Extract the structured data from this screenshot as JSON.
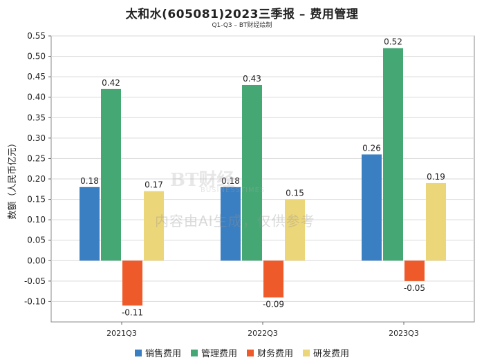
{
  "title": "太和水(605081)2023三季报 – 费用管理",
  "subtitle": "Q1-Q3 – BT财经绘制",
  "watermark": "内容由AI生成，仅供参考",
  "watermark_logo": "BT财经",
  "watermark_logo_sub": "BUSINESSTIMES",
  "chart_data": {
    "type": "bar",
    "title": "太和水(605081)2023三季报 – 费用管理",
    "subtitle": "Q1-Q3 – BT财经绘制",
    "xlabel": "",
    "ylabel": "数额（人民币亿元）",
    "categories": [
      "2021Q3",
      "2022Q3",
      "2023Q3"
    ],
    "ylim": [
      -0.15,
      0.55
    ],
    "yticks": [
      -0.1,
      -0.05,
      0.0,
      0.05,
      0.1,
      0.15,
      0.2,
      0.25,
      0.3,
      0.35,
      0.4,
      0.45,
      0.5,
      0.55
    ],
    "grid": true,
    "legend_position": "bottom",
    "series": [
      {
        "name": "销售费用",
        "color": "#3a7fc1",
        "values": [
          0.18,
          0.18,
          0.26
        ]
      },
      {
        "name": "管理费用",
        "color": "#45a874",
        "values": [
          0.42,
          0.43,
          0.52
        ]
      },
      {
        "name": "财务费用",
        "color": "#ee5a2a",
        "values": [
          -0.11,
          -0.09,
          -0.05
        ]
      },
      {
        "name": "研发费用",
        "color": "#ecd67a",
        "values": [
          0.17,
          0.15,
          0.19
        ]
      }
    ]
  }
}
